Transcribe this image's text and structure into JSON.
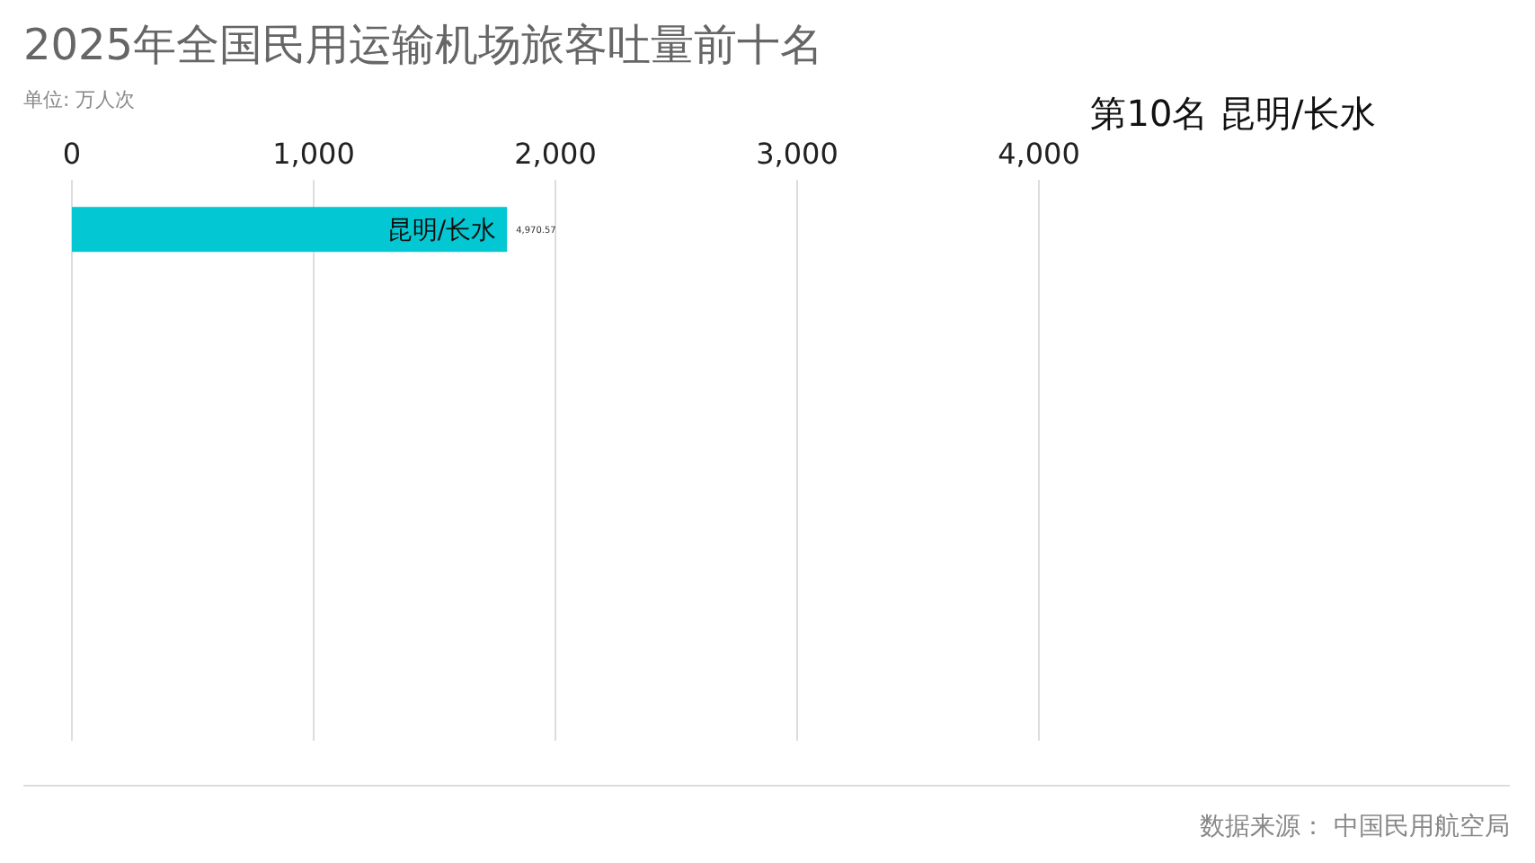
{
  "chart_data": {
    "type": "bar",
    "orientation": "horizontal",
    "title": "2025年全国民用运输机场旅客吐量前十名",
    "subtitle": "单位: 万人次",
    "categories": [
      "昆明/长水",
      null,
      null,
      null,
      null,
      null,
      null,
      null,
      null,
      null
    ],
    "values": [
      1800,
      null,
      null,
      null,
      null,
      null,
      null,
      null,
      null,
      null
    ],
    "color": "#03c8d4",
    "xlim": [
      0,
      4000
    ],
    "xticks": [
      0,
      {
        "value": 1000,
        "label": "1,000"
      },
      {
        "value": 2000,
        "label": "2,000"
      },
      {
        "value": 3000,
        "label": "3,000"
      },
      {
        "value": 4000,
        "label": "4,000"
      }
    ],
    "grid": "x",
    "annotations": [
      {
        "text": "4,970.57",
        "x": 1800,
        "y": "昆明/长水"
      },
      "第10名 昆明/长水",
      "数据来源： 中国民用航空局"
    ]
  }
}
